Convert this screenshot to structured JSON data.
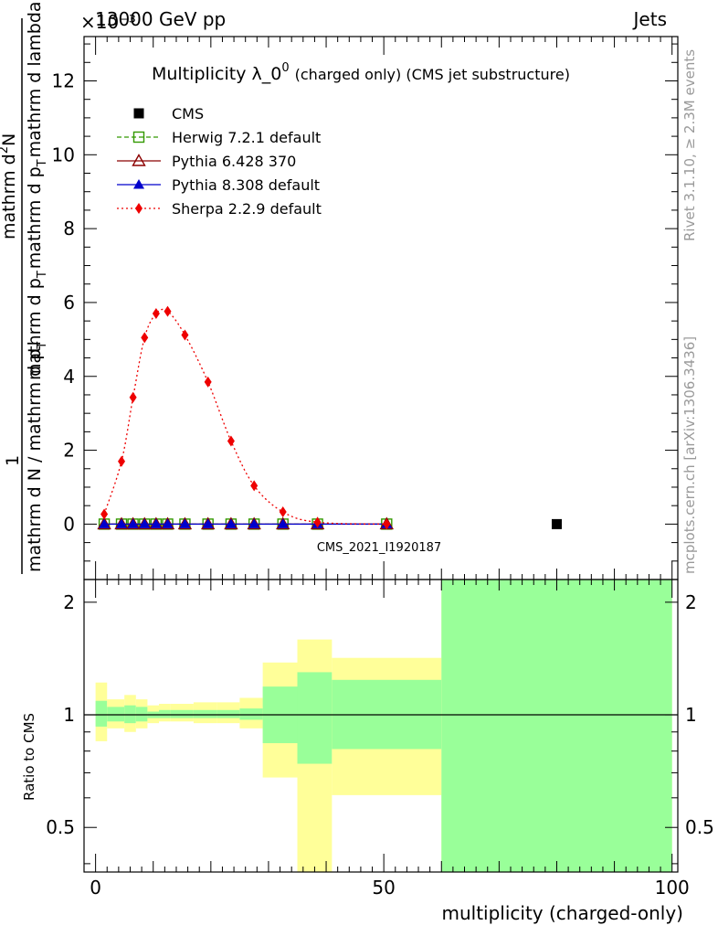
{
  "header": {
    "left": "13000 GeV pp",
    "right": "Jets",
    "exponent": "×10⁻³"
  },
  "side_text": {
    "top": "Rivet 3.1.10, ≥ 2.3M events",
    "bottom": "mcplots.cern.ch [arXiv:1306.3436]"
  },
  "watermark": "CMS_2021_I1920187",
  "chart_data": [
    {
      "type": "line",
      "title": "Multiplicity λ_0⁰ (charged only) (CMS jet substructure)",
      "title_main": "Multiplicity λ_0",
      "title_sup": "0",
      "title_small": "(charged only) (CMS jet substructure)",
      "ylabel": "1 / mathrm d N / mathrm d p_T  mathrm d²N / mathrm d p_T mathrm d lambda",
      "ylabel_parts": {
        "one": "1",
        "denominator": "mathrm d N / mathrm d p",
        "denominator_sub": "T",
        "num_a": "mathrm d",
        "num_sup": "2",
        "num_b": "N",
        "num_c": "mathrm d p",
        "num_c_sub": "T",
        "num_d": "mathrm d p",
        "num_d_sub": "T",
        "num_e": "mathrm d lambda"
      },
      "xlim": [
        -2,
        101
      ],
      "ylim": [
        -1.5,
        13.2
      ],
      "yticks": [
        0,
        2,
        4,
        6,
        8,
        10,
        12
      ],
      "ytick_labels": [
        "0",
        "2",
        "4",
        "6",
        "8",
        "10",
        "12"
      ],
      "legend_position": "top-left",
      "series": [
        {
          "name": "CMS",
          "color": "#000000",
          "marker": "square",
          "x": [
            80
          ],
          "y": [
            0.0
          ]
        },
        {
          "name": "Herwig 7.2.1 default",
          "color": "#339900",
          "marker": "open-square",
          "dash": "5,3",
          "x": [
            1.5,
            4.5,
            6.5,
            8.5,
            10.5,
            12.5,
            15.5,
            19.5,
            23.5,
            27.5,
            32.5,
            38.5,
            50.5
          ],
          "y": [
            0,
            0,
            0,
            0,
            0,
            0,
            0,
            0,
            0,
            0,
            0,
            0,
            0
          ]
        },
        {
          "name": "Pythia 6.428 370",
          "color": "#8b0000",
          "marker": "open-triangle",
          "dash": "",
          "x": [
            1.5,
            4.5,
            6.5,
            8.5,
            10.5,
            12.5,
            15.5,
            19.5,
            23.5,
            27.5,
            32.5,
            38.5,
            50.5
          ],
          "y": [
            0,
            0,
            0,
            0,
            0,
            0,
            0,
            0,
            0,
            0,
            0,
            0,
            0
          ]
        },
        {
          "name": "Pythia 8.308 default",
          "color": "#0000cc",
          "marker": "filled-triangle",
          "dash": "",
          "x": [
            1.5,
            4.5,
            6.5,
            8.5,
            10.5,
            12.5,
            15.5,
            19.5,
            23.5,
            27.5,
            32.5,
            38.5,
            50.5
          ],
          "y": [
            0,
            0,
            0,
            0,
            0,
            0,
            0,
            0,
            0,
            0,
            0,
            0,
            0
          ]
        },
        {
          "name": "Sherpa 2.2.9 default",
          "color": "#ee0000",
          "marker": "diamond",
          "dash": "2,3",
          "x": [
            1.5,
            4.5,
            6.5,
            8.5,
            10.5,
            12.5,
            15.5,
            19.5,
            23.5,
            27.5,
            32.5,
            38.5,
            50.5
          ],
          "y": [
            0.27,
            1.7,
            3.43,
            5.05,
            5.7,
            5.76,
            5.12,
            3.85,
            2.25,
            1.04,
            0.33,
            0.05,
            0.0
          ]
        }
      ]
    },
    {
      "type": "area",
      "ylabel": "Ratio to CMS",
      "xlabel": "multiplicity (charged-only)",
      "xlim": [
        -2,
        101
      ],
      "ylim": [
        0.38,
        2.3
      ],
      "log_y": true,
      "xticks": [
        0,
        50,
        100
      ],
      "xtick_labels": [
        "0",
        "50",
        "100"
      ],
      "yticks": [
        0.5,
        1,
        2
      ],
      "ytick_labels": [
        "0.5",
        "1",
        "2"
      ],
      "reference_line": 1,
      "bands": {
        "colors": {
          "outer": "#ffff99",
          "inner": "#99ff99"
        },
        "bins": [
          {
            "x": [
              0,
              2
            ],
            "outer": [
              0.85,
              1.22
            ],
            "inner": [
              0.93,
              1.09
            ]
          },
          {
            "x": [
              2,
              5
            ],
            "outer": [
              0.92,
              1.1
            ],
            "inner": [
              0.96,
              1.05
            ]
          },
          {
            "x": [
              5,
              7
            ],
            "outer": [
              0.9,
              1.13
            ],
            "inner": [
              0.95,
              1.06
            ]
          },
          {
            "x": [
              7,
              9
            ],
            "outer": [
              0.92,
              1.1
            ],
            "inner": [
              0.96,
              1.05
            ]
          },
          {
            "x": [
              9,
              11
            ],
            "outer": [
              0.95,
              1.06
            ],
            "inner": [
              0.98,
              1.02
            ]
          },
          {
            "x": [
              11,
              13
            ],
            "outer": [
              0.96,
              1.07
            ],
            "inner": [
              0.98,
              1.03
            ]
          },
          {
            "x": [
              13,
              17
            ],
            "outer": [
              0.96,
              1.07
            ],
            "inner": [
              0.98,
              1.03
            ]
          },
          {
            "x": [
              17,
              21
            ],
            "outer": [
              0.95,
              1.08
            ],
            "inner": [
              0.98,
              1.03
            ]
          },
          {
            "x": [
              21,
              25
            ],
            "outer": [
              0.95,
              1.08
            ],
            "inner": [
              0.98,
              1.03
            ]
          },
          {
            "x": [
              25,
              29
            ],
            "outer": [
              0.92,
              1.11
            ],
            "inner": [
              0.97,
              1.04
            ]
          },
          {
            "x": [
              29,
              35
            ],
            "outer": [
              0.68,
              1.38
            ],
            "inner": [
              0.84,
              1.19
            ]
          },
          {
            "x": [
              35,
              41
            ],
            "outer": [
              0.38,
              1.59
            ],
            "inner": [
              0.74,
              1.3
            ]
          },
          {
            "x": [
              41,
              60
            ],
            "outer": [
              0.61,
              1.42
            ],
            "inner": [
              0.81,
              1.24
            ]
          },
          {
            "x": [
              60,
              100
            ],
            "outer": [
              0.38,
              2.3
            ],
            "inner": [
              0.38,
              2.3
            ]
          }
        ]
      },
      "series": [
        {
          "name": "Herwig 7.2.1 default",
          "color": "#339900",
          "x": [],
          "y": []
        },
        {
          "name": "Pythia 6.428 370",
          "color": "#8b0000",
          "x": [],
          "y": []
        },
        {
          "name": "Pythia 8.308 default",
          "color": "#0000cc",
          "x": [],
          "y": []
        },
        {
          "name": "Sherpa 2.2.9 default",
          "color": "#ee0000",
          "x": [],
          "y": []
        }
      ]
    }
  ]
}
